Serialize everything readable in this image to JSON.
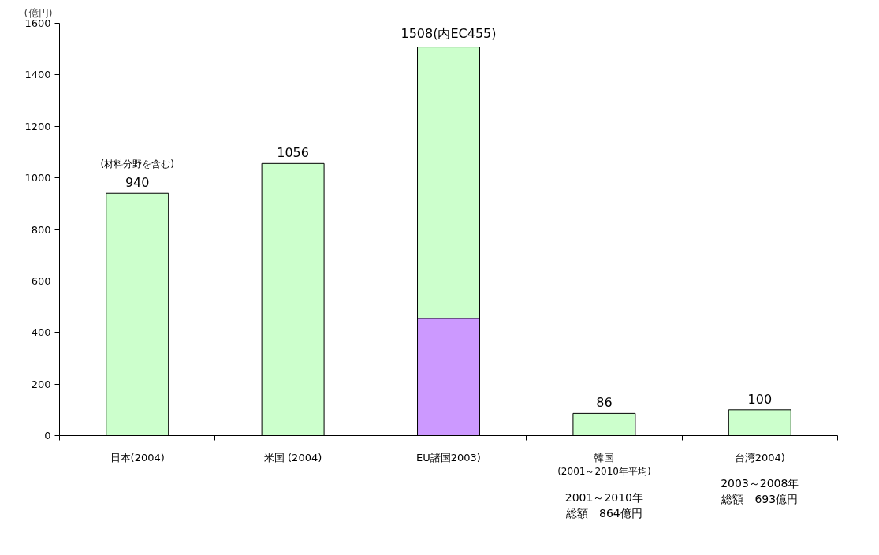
{
  "chart_data": {
    "type": "bar",
    "stacked": true,
    "ylabel": "(億円)",
    "categories": [
      "日本(2004)",
      "米国 (2004)",
      "EU諸国2003)",
      "韓国",
      "台湾2004)"
    ],
    "series": [
      {
        "color": "#cc99ff",
        "values": [
          null,
          null,
          455,
          null,
          null
        ]
      },
      {
        "color": "#ccffcc",
        "values": [
          940,
          1056,
          1053,
          86,
          100
        ]
      }
    ],
    "totals": [
      "940",
      "1056",
      "1508(内EC455)",
      "86",
      "100"
    ],
    "ylim": [
      0,
      1600
    ],
    "yticks": [
      0,
      200,
      400,
      600,
      800,
      1000,
      1200,
      1400,
      1600
    ],
    "grid": false,
    "annotations": [
      "(材料分野を含む)",
      "(2001～2010年平均)",
      "2001～2010年",
      "総額　864億円",
      "2003～2008年",
      "総額　693億円"
    ]
  }
}
